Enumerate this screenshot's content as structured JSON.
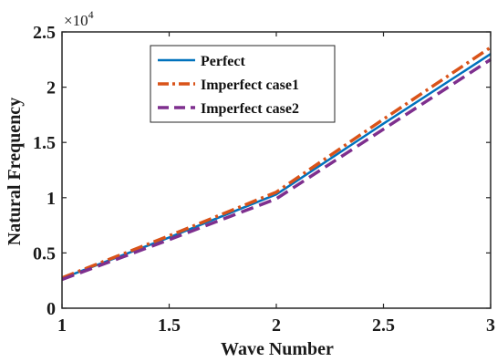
{
  "chart_data": {
    "type": "line",
    "xlabel": "Wave Number",
    "ylabel": "Natural Frequency",
    "xlim": [
      1,
      3
    ],
    "ylim": [
      0,
      25000
    ],
    "x_ticks": [
      1,
      1.5,
      2,
      2.5,
      3
    ],
    "x_tick_labels": [
      "1",
      "1.5",
      "2",
      "2.5",
      "3"
    ],
    "y_ticks": [
      0,
      5000,
      10000,
      15000,
      20000,
      25000
    ],
    "y_tick_labels": [
      "0",
      "0.5",
      "1",
      "1.5",
      "2",
      "2.5"
    ],
    "y_exponent": "×10",
    "y_exponent_power": "4",
    "grid": false,
    "legend_position": "top-center",
    "series": [
      {
        "name": "Perfect",
        "color": "#0072BD",
        "style": "solid",
        "x": [
          1,
          1.5,
          2,
          2.5,
          3
        ],
        "y": [
          2700,
          6400,
          10300,
          16700,
          23000
        ]
      },
      {
        "name": "Imperfect case1",
        "color": "#D95319",
        "style": "dashdot",
        "x": [
          1,
          1.5,
          2,
          2.5,
          3
        ],
        "y": [
          2750,
          6550,
          10500,
          17100,
          23600
        ]
      },
      {
        "name": "Imperfect case2",
        "color": "#7E2F8E",
        "style": "dashed",
        "x": [
          1,
          1.5,
          2,
          2.5,
          3
        ],
        "y": [
          2600,
          6200,
          9900,
          16200,
          22500
        ]
      }
    ]
  }
}
